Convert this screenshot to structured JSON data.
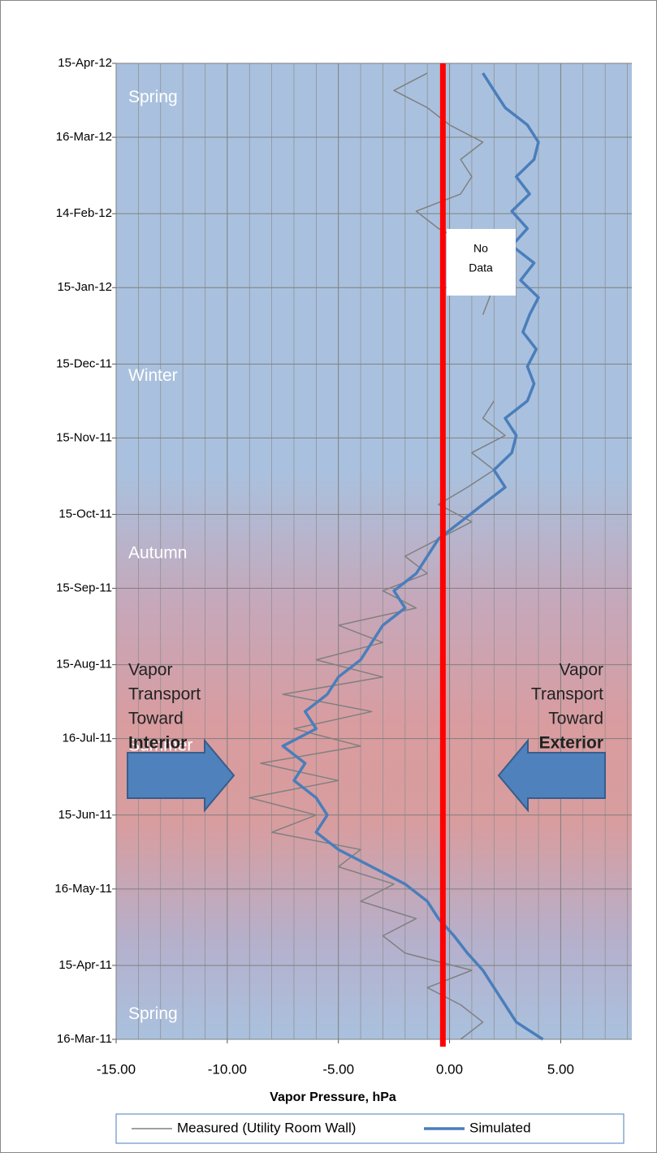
{
  "chart_data": {
    "type": "line",
    "orientation": "value-axis-horizontal",
    "y_title": "Vapor Pressure, hPa",
    "x": [
      "2011-03-16",
      "2011-03-23",
      "2011-03-30",
      "2011-04-06",
      "2011-04-13",
      "2011-04-20",
      "2011-04-27",
      "2011-05-04",
      "2011-05-11",
      "2011-05-18",
      "2011-05-25",
      "2011-06-01",
      "2011-06-08",
      "2011-06-15",
      "2011-06-22",
      "2011-06-29",
      "2011-07-06",
      "2011-07-13",
      "2011-07-20",
      "2011-07-27",
      "2011-08-03",
      "2011-08-10",
      "2011-08-17",
      "2011-08-24",
      "2011-08-31",
      "2011-09-07",
      "2011-09-14",
      "2011-09-21",
      "2011-09-28",
      "2011-10-05",
      "2011-10-12",
      "2011-10-19",
      "2011-10-26",
      "2011-11-02",
      "2011-11-09",
      "2011-11-16",
      "2011-11-23",
      "2011-11-30",
      "2011-12-07",
      "2011-12-14",
      "2011-12-21",
      "2011-12-28",
      "2012-01-04",
      "2012-01-11",
      "2012-01-18",
      "2012-01-25",
      "2012-02-01",
      "2012-02-08",
      "2012-02-15",
      "2012-02-22",
      "2012-02-29",
      "2012-03-07",
      "2012-03-14",
      "2012-03-21",
      "2012-03-28",
      "2012-04-04",
      "2012-04-11"
    ],
    "series": [
      {
        "name": "Measured (Utility Room Wall)",
        "color": "#808080",
        "width": 1.5,
        "values": [
          0.5,
          1.5,
          0.5,
          -1.0,
          1.0,
          -2.0,
          -3.0,
          -1.5,
          -4.0,
          -2.5,
          -5.0,
          -4.0,
          -8.0,
          -6.0,
          -9.0,
          -5.0,
          -8.5,
          -4.0,
          -7.0,
          -3.5,
          -7.5,
          -3.0,
          -6.0,
          -3.0,
          -5.0,
          -1.5,
          -3.0,
          -1.0,
          -2.0,
          -0.5,
          1.0,
          -0.5,
          0.8,
          2.0,
          1.0,
          2.5,
          1.5,
          2.0,
          null,
          null,
          null,
          null,
          1.5,
          1.8,
          2.0,
          1.5,
          1.0,
          -0.5,
          -1.5,
          0.5,
          1.0,
          0.5,
          1.5,
          0.0,
          -1.0,
          -2.5,
          -1.0
        ]
      },
      {
        "name": "Simulated",
        "color": "#4a7ebb",
        "width": 3.5,
        "values": [
          4.2,
          3.0,
          2.5,
          2.0,
          1.5,
          0.8,
          0.2,
          -0.5,
          -1.0,
          -2.0,
          -3.5,
          -5.0,
          -6.0,
          -5.5,
          -6.0,
          -7.0,
          -6.5,
          -7.5,
          -6.0,
          -6.5,
          -5.5,
          -5.0,
          -4.0,
          -3.5,
          -3.0,
          -2.0,
          -2.5,
          -1.5,
          -1.0,
          -0.5,
          0.5,
          1.5,
          2.5,
          2.0,
          2.8,
          3.0,
          2.5,
          3.5,
          3.8,
          3.5,
          3.9,
          3.3,
          3.6,
          4.0,
          3.2,
          3.8,
          2.8,
          3.5,
          2.8,
          3.6,
          3.0,
          3.8,
          4.0,
          3.5,
          2.5,
          2.0,
          1.5
        ]
      }
    ],
    "ylim": [
      -15,
      8.2
    ],
    "yticks": [
      {
        "value": -15,
        "label": "-15.00"
      },
      {
        "value": -10,
        "label": "-10.00"
      },
      {
        "value": -5,
        "label": "-5.00"
      },
      {
        "value": 0,
        "label": "0.00"
      },
      {
        "value": 5,
        "label": "5.00"
      }
    ],
    "minor_gridlines": [
      -14,
      -13,
      -12,
      -11,
      -9,
      -8,
      -7,
      -6,
      -4,
      -3,
      -2,
      -1,
      1,
      2,
      3,
      4,
      6,
      7,
      8
    ],
    "xlim": [
      "2011-03-16",
      "2012-04-15"
    ],
    "xticks": [
      {
        "value": "2011-03-16",
        "label": "16-Mar-11"
      },
      {
        "value": "2011-04-15",
        "label": "15-Apr-11"
      },
      {
        "value": "2011-05-16",
        "label": "16-May-11"
      },
      {
        "value": "2011-06-15",
        "label": "15-Jun-11"
      },
      {
        "value": "2011-07-16",
        "label": "16-Jul-11"
      },
      {
        "value": "2011-08-15",
        "label": "15-Aug-11"
      },
      {
        "value": "2011-09-15",
        "label": "15-Sep-11"
      },
      {
        "value": "2011-10-15",
        "label": "15-Oct-11"
      },
      {
        "value": "2011-11-15",
        "label": "15-Nov-11"
      },
      {
        "value": "2011-12-15",
        "label": "15-Dec-11"
      },
      {
        "value": "2012-01-15",
        "label": "15-Jan-12"
      },
      {
        "value": "2012-02-14",
        "label": "14-Feb-12"
      },
      {
        "value": "2012-03-16",
        "label": "16-Mar-12"
      },
      {
        "value": "2012-04-15",
        "label": "15-Apr-12"
      }
    ],
    "grid": true,
    "legend": "bottom",
    "reference_line": {
      "value": -0.3,
      "color": "#ff0000"
    },
    "seasons": [
      {
        "label": "Spring",
        "date": "2012-04-01"
      },
      {
        "label": "Winter",
        "date": "2011-12-10"
      },
      {
        "label": "Autumn",
        "date": "2011-09-29"
      },
      {
        "label": "Summer",
        "date": "2011-07-13"
      },
      {
        "label": "Spring",
        "date": "2011-03-26"
      }
    ],
    "left_note": [
      "Vapor",
      "Transport",
      "Toward",
      "Interior"
    ],
    "right_note": [
      "Vapor",
      "Transport",
      "Toward",
      "Exterior"
    ],
    "no_data": [
      "No",
      "Data"
    ]
  }
}
